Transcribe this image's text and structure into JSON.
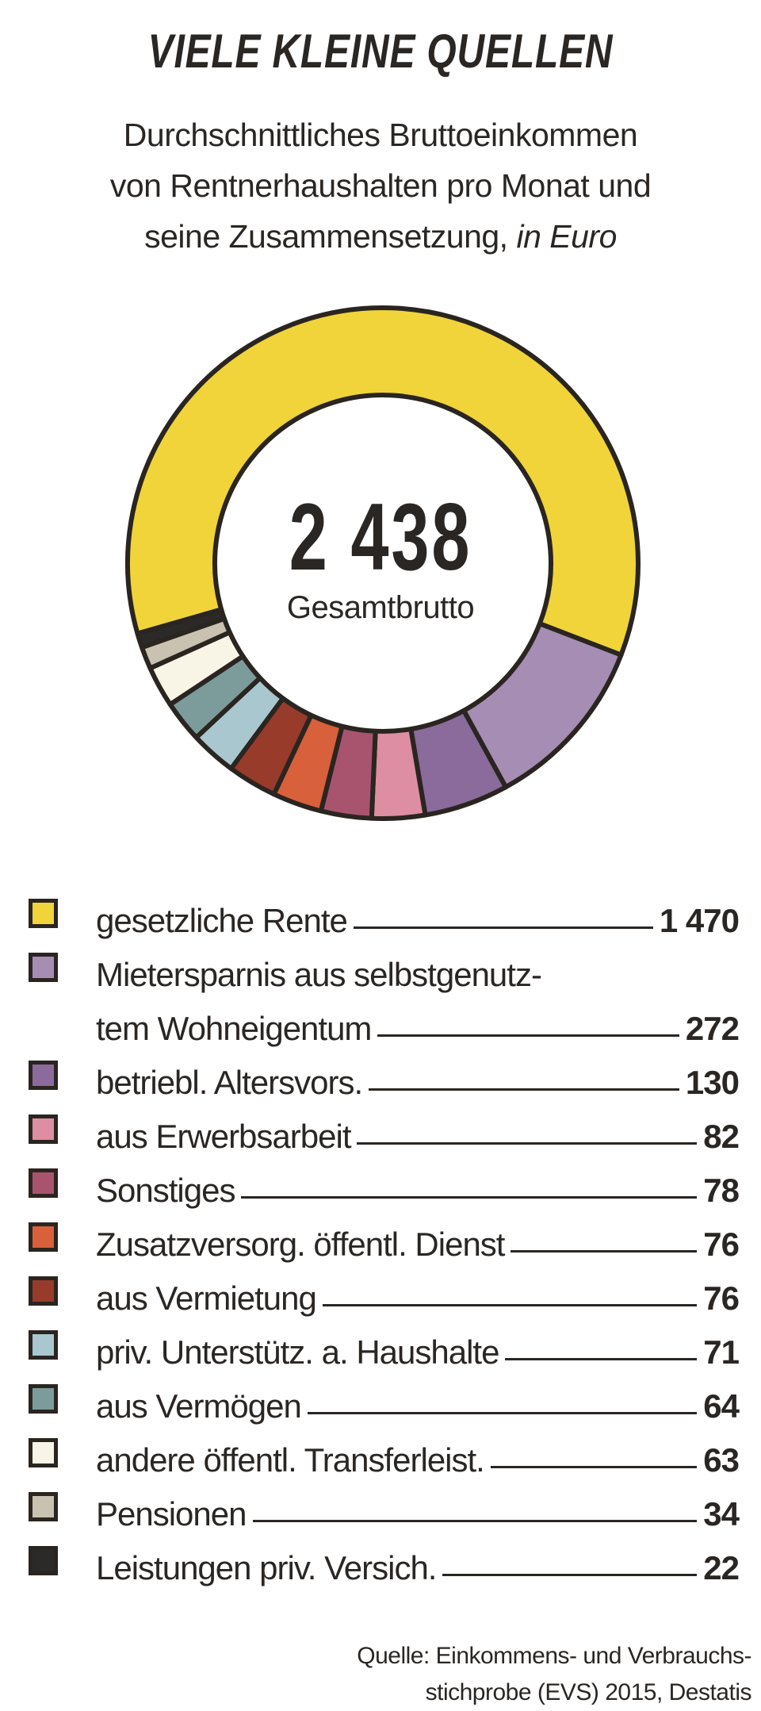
{
  "title": "VIELE KLEINE QUELLEN",
  "subtitle": {
    "line1": "Durchschnittliches Bruttoeinkommen",
    "line2": "von Rentnerhaushalten pro Monat und",
    "line3_plain": "seine Zusammensetzung, ",
    "line3_italic": "in Euro"
  },
  "center": {
    "value": "2 438",
    "label": "Gesamtbrutto"
  },
  "source": {
    "line1": "Quelle: Einkommens- und Verbrauchs-",
    "line2": "stichprobe (EVS) 2015, Destatis"
  },
  "chart_data": {
    "type": "pie",
    "variant": "donut",
    "title": "VIELE KLEINE QUELLEN",
    "total": 2438,
    "unit": "Euro",
    "slices": [
      {
        "label": "gesetzliche Rente",
        "value": 1470,
        "display": "1 470",
        "color": "#f0d43a"
      },
      {
        "label": "Mietersparnis aus selbstgenutz-",
        "label2": "tem Wohneigentum",
        "value": 272,
        "display": "272",
        "color": "#a68db4"
      },
      {
        "label": "betriebl. Altersvors.",
        "value": 130,
        "display": "130",
        "color": "#8a6b9b"
      },
      {
        "label": "aus Erwerbsarbeit",
        "value": 82,
        "display": "82",
        "color": "#de8ea2"
      },
      {
        "label": "Sonstiges",
        "value": 78,
        "display": "78",
        "color": "#a9546f"
      },
      {
        "label": "Zusatzversorg. öffentl. Dienst",
        "value": 76,
        "display": "76",
        "color": "#d8603b"
      },
      {
        "label": "aus Vermietung",
        "value": 76,
        "display": "76",
        "color": "#983b2b"
      },
      {
        "label": "priv. Unterstütz. a. Haushalte",
        "value": 71,
        "display": "71",
        "color": "#a9c7ce"
      },
      {
        "label": "aus Vermögen",
        "value": 64,
        "display": "64",
        "color": "#7c9c9c"
      },
      {
        "label": "andere öffentl. Transferleist.",
        "value": 63,
        "display": "63",
        "color": "#f8f5e6"
      },
      {
        "label": "Pensionen",
        "value": 34,
        "display": "34",
        "color": "#c9c2b0"
      },
      {
        "label": "Leistungen priv. Versich.",
        "value": 22,
        "display": "22",
        "color": "#2b2a28"
      }
    ]
  }
}
